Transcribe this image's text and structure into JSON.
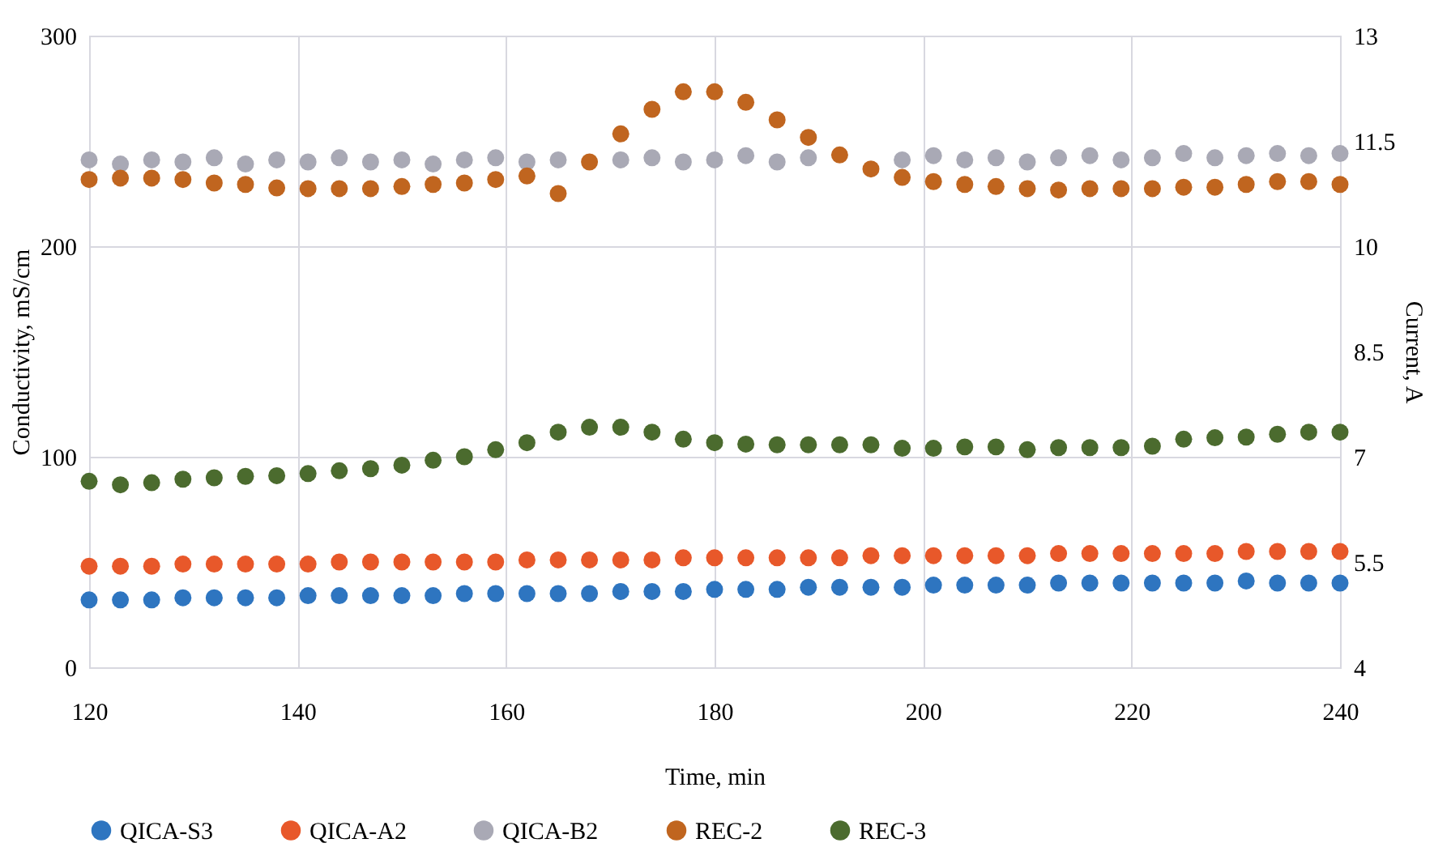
{
  "chart_data": {
    "type": "scatter",
    "xlabel": "Time, min",
    "ylabel": "Conductivity, mS/cm",
    "y2label": "Current, A",
    "x": [
      120,
      123,
      126,
      129,
      132,
      135,
      138,
      141,
      144,
      147,
      150,
      153,
      156,
      159,
      162,
      165,
      168,
      171,
      174,
      177,
      180,
      183,
      186,
      189,
      192,
      195,
      198,
      201,
      204,
      207,
      210,
      213,
      216,
      219,
      222,
      225,
      228,
      231,
      234,
      237,
      240
    ],
    "xlim": [
      120,
      240
    ],
    "xticks": [
      120,
      140,
      160,
      180,
      200,
      220,
      240
    ],
    "ylim": [
      0,
      300
    ],
    "yticks": [
      0,
      100,
      200,
      300
    ],
    "y2lim": [
      4,
      13
    ],
    "y2ticks": [
      4,
      5.5,
      7,
      8.5,
      10,
      11.5,
      13
    ],
    "grid": true,
    "legend": "bottom",
    "marker": "circle",
    "series": [
      {
        "name": "QICA-S3",
        "color": "#2e75c0",
        "values": [
          32,
          32,
          32,
          33,
          33,
          33,
          33,
          34,
          34,
          34,
          34,
          34,
          35,
          35,
          35,
          35,
          35,
          36,
          36,
          36,
          37,
          37,
          37,
          38,
          38,
          38,
          38,
          39,
          39,
          39,
          39,
          40,
          40,
          40,
          40,
          40,
          40,
          41,
          40,
          40,
          40
        ]
      },
      {
        "name": "QICA-A2",
        "color": "#e8582a",
        "values": [
          48,
          48,
          48,
          49,
          49,
          49,
          49,
          49,
          50,
          50,
          50,
          50,
          50,
          50,
          51,
          51,
          51,
          51,
          51,
          52,
          52,
          52,
          52,
          52,
          52,
          53,
          53,
          53,
          53,
          53,
          53,
          54,
          54,
          54,
          54,
          54,
          54,
          55,
          55,
          55,
          55
        ]
      },
      {
        "name": "QICA-B2",
        "color": "#a9a9b5",
        "values": [
          241,
          239,
          241,
          240,
          242,
          239,
          241,
          240,
          242,
          240,
          241,
          239,
          241,
          242,
          240,
          241,
          null,
          241,
          242,
          240,
          241,
          243,
          240,
          242,
          null,
          null,
          241,
          243,
          241,
          242,
          240,
          242,
          243,
          241,
          242,
          244,
          242,
          243,
          244,
          243,
          244
        ]
      },
      {
        "name": "REC-2",
        "color": "#c0651f",
        "axis": "y2",
        "values": [
          10.95,
          10.97,
          10.97,
          10.95,
          10.9,
          10.88,
          10.83,
          10.82,
          10.82,
          10.82,
          10.85,
          10.88,
          10.9,
          10.95,
          11.0,
          10.75,
          11.2,
          11.6,
          11.95,
          12.2,
          12.2,
          12.05,
          11.8,
          11.55,
          11.3,
          11.1,
          10.98,
          10.92,
          10.88,
          10.85,
          10.82,
          10.8,
          10.82,
          10.82,
          10.82,
          10.84,
          10.84,
          10.88,
          10.92,
          10.92,
          10.88
        ]
      },
      {
        "name": "REC-3",
        "color": "#4b6b2e",
        "axis": "y2",
        "values": [
          6.65,
          6.6,
          6.63,
          6.68,
          6.7,
          6.72,
          6.73,
          6.76,
          6.8,
          6.83,
          6.88,
          6.95,
          7.0,
          7.1,
          7.2,
          7.35,
          7.42,
          7.42,
          7.35,
          7.25,
          7.2,
          7.18,
          7.17,
          7.17,
          7.17,
          7.17,
          7.12,
          7.12,
          7.14,
          7.14,
          7.1,
          7.13,
          7.13,
          7.13,
          7.15,
          7.25,
          7.27,
          7.28,
          7.32,
          7.35,
          7.35
        ]
      }
    ]
  }
}
